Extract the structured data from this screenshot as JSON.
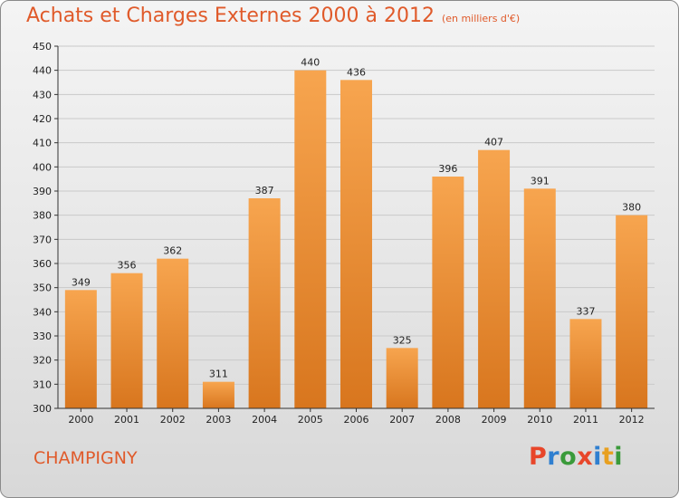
{
  "header": {
    "title": "Achats et Charges Externes 2000 à 2012",
    "subtitle": "(en milliers d'€)"
  },
  "footer": {
    "city": "CHAMPIGNY",
    "logo_text": "Proxiti",
    "logo_colors": [
      "#e8462a",
      "#2f7fd0",
      "#3a9a3a",
      "#e8462a",
      "#2f7fd0",
      "#e8a020",
      "#3a9a3a"
    ]
  },
  "colors": {
    "bar_light": "#f7a54f",
    "bar_dark": "#d8761e",
    "grid": "#c9c9c9",
    "axis": "#333333",
    "text": "#222222",
    "accent": "#e05a2a"
  },
  "chart_data": {
    "type": "bar",
    "title": "Achats et Charges Externes 2000 à 2012",
    "subtitle": "(en milliers d'€)",
    "categories": [
      "2000",
      "2001",
      "2002",
      "2003",
      "2004",
      "2005",
      "2006",
      "2007",
      "2008",
      "2009",
      "2010",
      "2011",
      "2012"
    ],
    "values": [
      349,
      356,
      362,
      311,
      387,
      440,
      436,
      325,
      396,
      407,
      391,
      337,
      380
    ],
    "ylim": [
      300,
      450
    ],
    "yticks": [
      300,
      310,
      320,
      330,
      340,
      350,
      360,
      370,
      380,
      390,
      400,
      410,
      420,
      430,
      440,
      450
    ],
    "grid": true,
    "data_labels": true
  }
}
